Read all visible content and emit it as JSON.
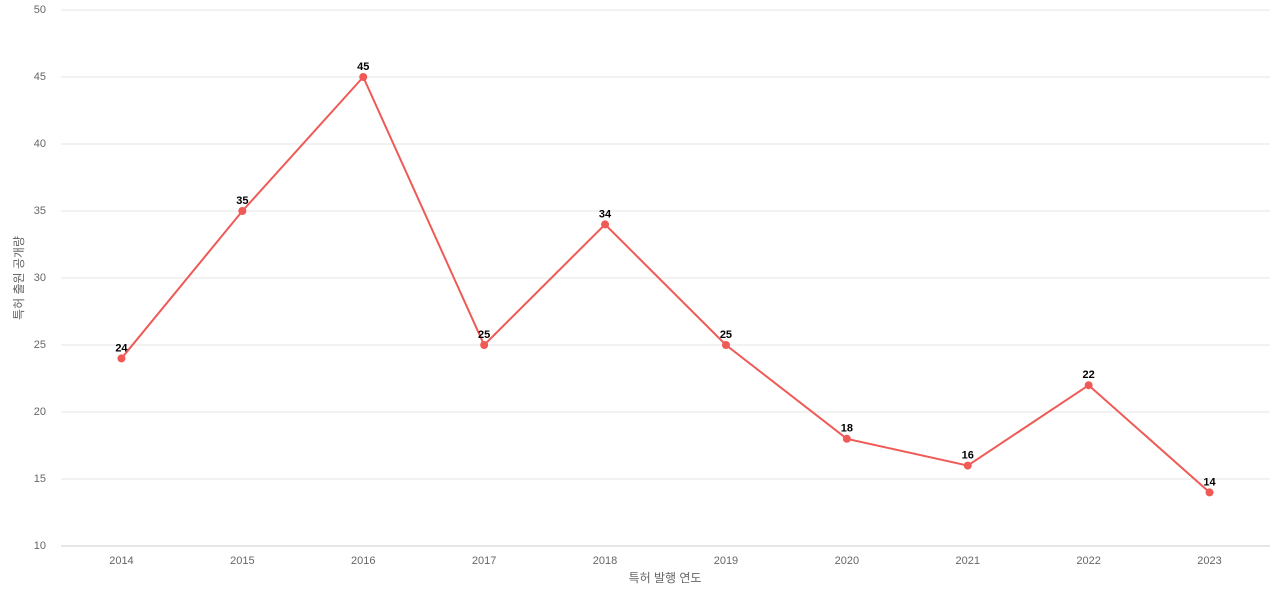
{
  "chart_data": {
    "type": "line",
    "x_label": "특허 발행 연도",
    "y_label": "특허 출원 공개량",
    "categories": [
      "2014",
      "2015",
      "2016",
      "2017",
      "2018",
      "2019",
      "2020",
      "2021",
      "2022",
      "2023"
    ],
    "values": [
      24,
      35,
      45,
      25,
      34,
      25,
      18,
      16,
      22,
      14
    ],
    "color": "#ef5a57",
    "ylim": [
      10,
      50
    ],
    "yticks": [
      10,
      15,
      20,
      25,
      30,
      35,
      40,
      45,
      50
    ],
    "grid": true
  }
}
